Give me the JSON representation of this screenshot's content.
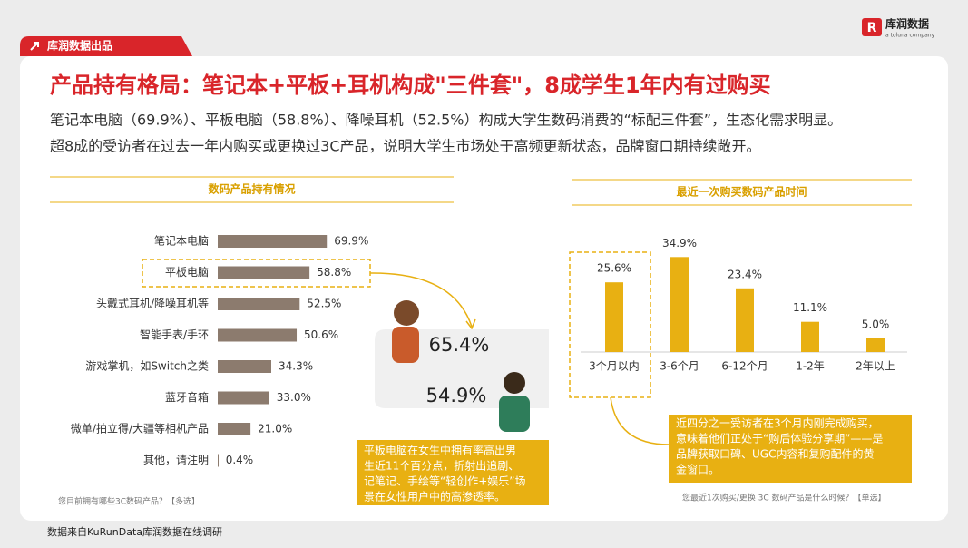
{
  "brand": {
    "tag": "库润数据出品",
    "logo": "库润数据",
    "logo_sub": "a toluna company"
  },
  "title": "产品持有格局：笔记本+平板+耳机构成\"三件套\"，8成学生1年内有过购买",
  "body": [
    "笔记本电脑（69.9%）、平板电脑（58.8%）、降噪耳机（52.5%）构成大学生数码消费的“标配三件套”，生态化需求明显。",
    "超8成的受访者在过去一年内购买或更换过3C产品，说明大学生市场处于高频更新状态，品牌窗口期持续敞开。"
  ],
  "chart_data": [
    {
      "type": "bar",
      "orientation": "horizontal",
      "title": "数码产品持有情况",
      "categories": [
        "笔记本电脑",
        "平板电脑",
        "头戴式耳机/降噪耳机等",
        "智能手表/手环",
        "游戏掌机，如Switch之类",
        "蓝牙音箱",
        "微单/拍立得/大疆等相机产品",
        "其他，请注明"
      ],
      "values": [
        69.9,
        58.8,
        52.5,
        50.6,
        34.3,
        33.0,
        21.0,
        0.4
      ],
      "value_labels": [
        "69.9%",
        "58.8%",
        "52.5%",
        "50.6%",
        "34.3%",
        "33.0%",
        "21.0%",
        "0.4%"
      ],
      "color": "#8c7b6e",
      "xlim": [
        0,
        100
      ],
      "note": "您目前拥有哪些3C数码产品？【多选】"
    },
    {
      "type": "bar",
      "orientation": "vertical",
      "title": "最近一次购买数码产品时间",
      "categories": [
        "3个月以内",
        "3-6个月",
        "6-12个月",
        "1-2年",
        "2年以上"
      ],
      "values": [
        25.6,
        34.9,
        23.4,
        11.1,
        5.0
      ],
      "value_labels": [
        "25.6%",
        "34.9%",
        "23.4%",
        "11.1%",
        "5.0%"
      ],
      "color": "#e8b012",
      "ylim": [
        0,
        40
      ],
      "note": "您最近1次购买/更换 3C 数码产品是什么时候？【单选】"
    }
  ],
  "gender_rates": [
    "65.4%",
    "54.9%"
  ],
  "callouts": [
    [
      "平板电脑在女生中拥有率高出男",
      "生近11个百分点，折射出追剧、",
      "记笔记、手绘等“轻创作+娱乐”场",
      "景在女性用户中的高渗透率。"
    ],
    [
      "近四分之一受访者在3个月内刚完成购买，",
      "意味着他们正处于“购后体验分享期”——是",
      "品牌获取口碑、UGC内容和复购配件的黄",
      "金窗口。"
    ]
  ],
  "source": "数据来自KuRunData库润数据在线调研"
}
